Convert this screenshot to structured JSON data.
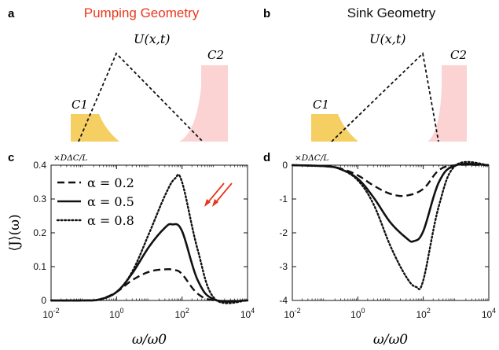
{
  "panels": {
    "a": {
      "letter": "a",
      "title": "Pumping Geometry",
      "title_color": "#e8361c",
      "potential_label": "U(x,t)",
      "c1_label": "C1",
      "c2_label": "C2"
    },
    "b": {
      "letter": "b",
      "title": "Sink Geometry",
      "title_color": "#111111",
      "potential_label": "U(x,t)",
      "c1_label": "C1",
      "c2_label": "C2"
    }
  },
  "colors": {
    "c1_fill": "#f6cf62",
    "c2_fill": "#fbd3d3",
    "arrow": "#e8361c"
  },
  "chart_data": [
    {
      "panel": "c",
      "type": "line",
      "scale_note": "×DΔC/L",
      "xlabel": "ω/ω0",
      "ylabel": "⟨J⟩(ω)",
      "xscale": "log",
      "xlim": [
        0.01,
        10000
      ],
      "ylim": [
        0,
        0.4
      ],
      "xticks": [
        "10^-2",
        "10^0",
        "10^2",
        "10^4"
      ],
      "yticks": [
        "0",
        "0.1",
        "0.2",
        "0.3",
        "0.4"
      ],
      "legend": {
        "position": "top-left",
        "entries": [
          "α = 0.2",
          "α = 0.5",
          "α = 0.8"
        ]
      },
      "series": [
        {
          "name": "α = 0.2",
          "style": "dashed",
          "x": [
            0.01,
            0.1,
            0.3,
            1,
            3,
            10,
            30,
            60,
            100,
            300,
            1000,
            10000
          ],
          "y": [
            0,
            0,
            0.003,
            0.025,
            0.06,
            0.085,
            0.092,
            0.09,
            0.078,
            0.02,
            0,
            0
          ]
        },
        {
          "name": "α = 0.5",
          "style": "solid",
          "x": [
            0.01,
            0.1,
            0.3,
            1,
            3,
            10,
            30,
            50,
            100,
            300,
            1000,
            10000
          ],
          "y": [
            0,
            0,
            0.003,
            0.025,
            0.08,
            0.16,
            0.215,
            0.225,
            0.205,
            0.06,
            0.002,
            0
          ]
        },
        {
          "name": "α = 0.8",
          "style": "dotted",
          "x": [
            0.01,
            0.1,
            0.3,
            1,
            3,
            10,
            30,
            60,
            100,
            300,
            1000,
            10000
          ],
          "y": [
            0,
            0,
            0.003,
            0.025,
            0.085,
            0.2,
            0.31,
            0.36,
            0.35,
            0.15,
            0.005,
            0
          ]
        }
      ]
    },
    {
      "panel": "d",
      "type": "line",
      "scale_note": "×DΔC/L",
      "xlabel": "ω/ω0",
      "ylabel": "",
      "xscale": "log",
      "xlim": [
        0.01,
        10000
      ],
      "ylim": [
        -4,
        0
      ],
      "xticks": [
        "10^-2",
        "10^0",
        "10^2",
        "10^4"
      ],
      "yticks": [
        "-4",
        "-3",
        "-2",
        "-1",
        "0"
      ],
      "series": [
        {
          "name": "α = 0.2",
          "style": "dashed",
          "x": [
            0.01,
            0.1,
            0.3,
            1,
            3,
            10,
            30,
            100,
            300,
            1000,
            10000
          ],
          "y": [
            0,
            -0.03,
            -0.1,
            -0.3,
            -0.6,
            -0.85,
            -0.9,
            -0.7,
            -0.15,
            0,
            0
          ]
        },
        {
          "name": "α = 0.5",
          "style": "solid",
          "x": [
            0.01,
            0.1,
            0.3,
            1,
            3,
            10,
            30,
            50,
            100,
            300,
            1000,
            10000
          ],
          "y": [
            0,
            -0.03,
            -0.12,
            -0.4,
            -0.95,
            -1.7,
            -2.15,
            -2.25,
            -1.95,
            -0.5,
            0,
            0
          ]
        },
        {
          "name": "α = 0.8",
          "style": "dotted",
          "x": [
            0.01,
            0.1,
            0.3,
            1,
            3,
            10,
            30,
            60,
            100,
            300,
            1000,
            10000
          ],
          "y": [
            0,
            -0.03,
            -0.12,
            -0.45,
            -1.15,
            -2.4,
            -3.3,
            -3.6,
            -3.4,
            -1.2,
            0,
            0
          ]
        }
      ]
    }
  ]
}
